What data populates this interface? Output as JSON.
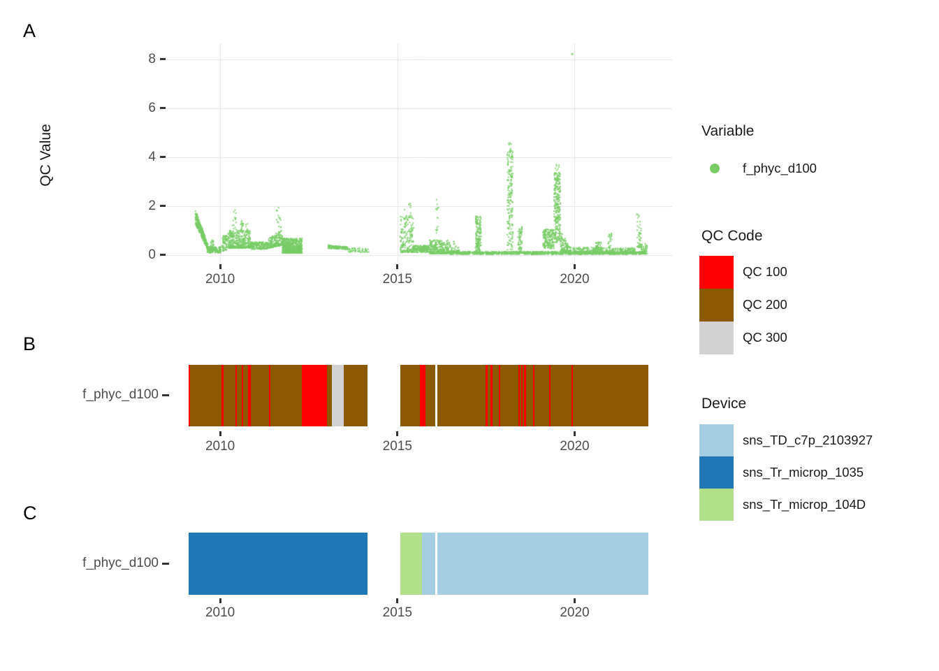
{
  "figure": {
    "background": "#ffffff"
  },
  "panel_tags": {
    "a": "A",
    "b": "B",
    "c": "C"
  },
  "colors": {
    "series_green": "#78CC66",
    "qc100": "#FF0000",
    "qc200": "#8B5A00",
    "qc300": "#D2D2D2",
    "device_lightblue": "#A6CEE3",
    "device_blue": "#1F78B4",
    "device_green": "#B2DF8A",
    "gridline": "#E4E4E4",
    "axis_text": "#4D4D4D",
    "tick_mark": "#333333",
    "gap": "#FFFFFF"
  },
  "panelA": {
    "y_axis_title": "QC Value",
    "y_tick_labels": [
      "0",
      "2",
      "4",
      "6",
      "8"
    ],
    "x_tick_labels": [
      "2010",
      "2015",
      "2020"
    ]
  },
  "panelB": {
    "row_label": "f_phyc_d100",
    "x_tick_labels": [
      "2010",
      "2015",
      "2020"
    ]
  },
  "panelC": {
    "row_label": "f_phyc_d100",
    "x_tick_labels": [
      "2010",
      "2015",
      "2020"
    ]
  },
  "legend": {
    "variable": {
      "title": "Variable",
      "items": [
        {
          "label": "f_phyc_d100",
          "color": "#78CC66",
          "marker": "dot"
        }
      ]
    },
    "qc": {
      "title": "QC Code",
      "items": [
        {
          "label": "QC 100",
          "color": "#FF0000"
        },
        {
          "label": "QC 200",
          "color": "#8B5A00"
        },
        {
          "label": "QC 300",
          "color": "#D2D2D2"
        }
      ]
    },
    "device": {
      "title": "Device",
      "items": [
        {
          "label": "sns_TD_c7p_2103927",
          "color": "#A6CEE3"
        },
        {
          "label": "sns_Tr_microp_1035",
          "color": "#1F78B4"
        },
        {
          "label": "sns_Tr_microp_104D",
          "color": "#B2DF8A"
        }
      ]
    }
  },
  "chart_data": [
    {
      "id": "A",
      "type": "scatter",
      "title": "",
      "xlabel": "",
      "ylabel": "QC Value",
      "x_ticks": [
        2010,
        2015,
        2020
      ],
      "y_ticks": [
        0,
        2,
        4,
        6,
        8
      ],
      "xlim": [
        2008.46,
        2022.75
      ],
      "ylim": [
        -0.39,
        8.64
      ],
      "grid": true,
      "legend_position": "right",
      "series_name": "f_phyc_d100",
      "outlier_point": {
        "x": 2019.93,
        "y": 8.21
      },
      "cluster_fields": [
        "x_start",
        "x_end",
        "y_min_at_start",
        "y_max_at_start",
        "y_min_at_end",
        "y_max_at_end",
        "n_points",
        "low_bias"
      ],
      "clusters": [
        [
          2009.3,
          2009.65,
          1.25,
          1.85,
          0.2,
          0.45,
          300,
          1
        ],
        [
          2009.63,
          2010.02,
          0.07,
          0.33,
          0.07,
          0.33,
          160,
          1
        ],
        [
          2009.72,
          2009.82,
          0.25,
          0.6,
          0.25,
          0.6,
          20,
          1
        ],
        [
          2010.05,
          2010.2,
          0.15,
          0.78,
          0.15,
          0.78,
          70,
          1
        ],
        [
          2010.22,
          2010.85,
          0.28,
          1.0,
          0.28,
          1.0,
          420,
          2
        ],
        [
          2010.35,
          2010.45,
          1.0,
          1.85,
          1.0,
          1.85,
          14,
          1
        ],
        [
          2010.55,
          2010.66,
          0.95,
          1.4,
          0.95,
          1.4,
          20,
          1
        ],
        [
          2010.72,
          2010.8,
          0.9,
          1.3,
          0.9,
          1.3,
          12,
          1
        ],
        [
          2010.85,
          2011.3,
          0.22,
          0.52,
          0.22,
          0.52,
          180,
          1
        ],
        [
          2011.3,
          2011.75,
          0.25,
          0.6,
          0.4,
          1.05,
          240,
          2
        ],
        [
          2011.55,
          2011.72,
          1.0,
          2.0,
          1.0,
          2.0,
          15,
          1
        ],
        [
          2011.75,
          2012.31,
          0.07,
          0.68,
          0.07,
          0.68,
          700,
          2
        ],
        [
          2013.05,
          2013.6,
          0.26,
          0.4,
          0.22,
          0.32,
          130,
          1
        ],
        [
          2013.6,
          2014.2,
          0.1,
          0.28,
          0.1,
          0.28,
          55,
          1
        ],
        [
          2015.08,
          2015.45,
          0.1,
          1.6,
          0.1,
          1.6,
          200,
          2
        ],
        [
          2015.18,
          2015.38,
          1.5,
          2.15,
          1.5,
          2.15,
          10,
          1
        ],
        [
          2015.45,
          2015.9,
          0.1,
          0.38,
          0.1,
          0.38,
          180,
          1
        ],
        [
          2015.9,
          2016.45,
          0.05,
          0.6,
          0.05,
          0.6,
          300,
          2
        ],
        [
          2016.08,
          2016.16,
          0.5,
          2.35,
          0.5,
          2.35,
          15,
          1
        ],
        [
          2016.45,
          2022.0,
          0.02,
          0.13,
          0.02,
          0.13,
          1150,
          1
        ],
        [
          2016.45,
          2016.75,
          0.1,
          0.8,
          0.1,
          0.3,
          60,
          2
        ],
        [
          2017.2,
          2017.36,
          0.1,
          1.58,
          0.1,
          1.58,
          150,
          1
        ],
        [
          2018.1,
          2018.26,
          0.2,
          4.25,
          0.2,
          4.25,
          180,
          1
        ],
        [
          2018.14,
          2018.22,
          4.25,
          4.6,
          4.25,
          4.6,
          6,
          1
        ],
        [
          2018.4,
          2018.52,
          0.1,
          1.15,
          0.1,
          1.15,
          60,
          1
        ],
        [
          2019.1,
          2019.42,
          0.25,
          1.05,
          0.25,
          1.05,
          170,
          1
        ],
        [
          2019.42,
          2019.6,
          0.5,
          3.35,
          0.5,
          3.35,
          280,
          1
        ],
        [
          2019.46,
          2019.56,
          3.35,
          3.75,
          3.35,
          3.75,
          8,
          1
        ],
        [
          2019.6,
          2019.9,
          0.15,
          0.95,
          0.05,
          0.3,
          140,
          2
        ],
        [
          2019.95,
          2021.1,
          0.04,
          0.3,
          0.04,
          0.3,
          300,
          2
        ],
        [
          2020.6,
          2020.75,
          0.2,
          0.55,
          0.2,
          0.55,
          40,
          1
        ],
        [
          2020.95,
          2021.05,
          0.3,
          0.95,
          0.3,
          0.95,
          20,
          1
        ],
        [
          2021.1,
          2021.7,
          0.04,
          0.28,
          0.04,
          0.28,
          170,
          2
        ],
        [
          2021.75,
          2021.88,
          0.3,
          2.1,
          0.3,
          1.2,
          45,
          2
        ],
        [
          2021.88,
          2022.05,
          0.05,
          0.45,
          0.05,
          0.45,
          60,
          2
        ]
      ]
    },
    {
      "id": "B",
      "type": "timeline-bar",
      "row_label": "f_phyc_d100",
      "legend_title": "QC Code",
      "x_ticks": [
        2010,
        2015,
        2020
      ],
      "segments": [
        {
          "label": "QC 200",
          "start": 2009.11,
          "end": 2014.16
        },
        {
          "label": "QC 200",
          "start": 2015.08,
          "end": 2016.06
        },
        {
          "label": "QC 200",
          "start": 2016.12,
          "end": 2022.08
        },
        {
          "label": "QC 100",
          "start": 2009.11,
          "end": 2009.15
        },
        {
          "label": "QC 100",
          "start": 2010.04,
          "end": 2010.1
        },
        {
          "label": "QC 100",
          "start": 2010.43,
          "end": 2010.47
        },
        {
          "label": "QC 100",
          "start": 2010.61,
          "end": 2010.65
        },
        {
          "label": "QC 100",
          "start": 2010.79,
          "end": 2010.87
        },
        {
          "label": "QC 100",
          "start": 2011.38,
          "end": 2011.42
        },
        {
          "label": "QC 100",
          "start": 2012.31,
          "end": 2013.01
        },
        {
          "label": "QC 300",
          "start": 2013.15,
          "end": 2013.49
        },
        {
          "label": "QC 100",
          "start": 2015.64,
          "end": 2015.79
        },
        {
          "label": "QC 100",
          "start": 2017.49,
          "end": 2017.55
        },
        {
          "label": "QC 100",
          "start": 2017.63,
          "end": 2017.69
        },
        {
          "label": "QC 100",
          "start": 2017.86,
          "end": 2017.9
        },
        {
          "label": "QC 100",
          "start": 2018.41,
          "end": 2018.45
        },
        {
          "label": "QC 100",
          "start": 2018.49,
          "end": 2018.53
        },
        {
          "label": "QC 100",
          "start": 2018.57,
          "end": 2018.63
        },
        {
          "label": "QC 100",
          "start": 2018.83,
          "end": 2018.87
        },
        {
          "label": "QC 100",
          "start": 2019.28,
          "end": 2019.32
        },
        {
          "label": "QC 100",
          "start": 2019.91,
          "end": 2019.95
        }
      ]
    },
    {
      "id": "C",
      "type": "timeline-bar",
      "row_label": "f_phyc_d100",
      "legend_title": "Device",
      "x_ticks": [
        2010,
        2015,
        2020
      ],
      "segments": [
        {
          "label": "sns_Tr_microp_1035",
          "start": 2009.11,
          "end": 2014.16
        },
        {
          "label": "sns_Tr_microp_104D",
          "start": 2015.08,
          "end": 2015.7
        },
        {
          "label": "sns_TD_c7p_2103927",
          "start": 2015.7,
          "end": 2016.06
        },
        {
          "label": "sns_TD_c7p_2103927",
          "start": 2016.12,
          "end": 2022.08
        }
      ]
    }
  ]
}
